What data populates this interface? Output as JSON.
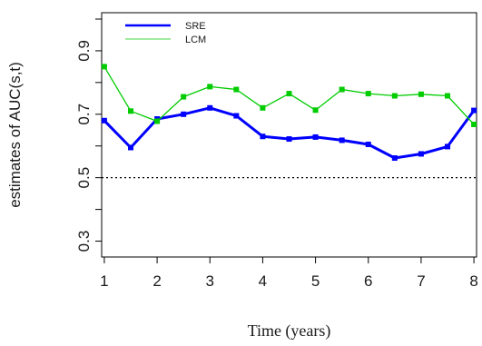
{
  "chart_data": {
    "type": "line",
    "xlabel": "Time (years)",
    "ylabel": "estimates of AUC(s,t)",
    "xlim": [
      0.95,
      8.05
    ],
    "ylim": [
      0.25,
      1.02
    ],
    "x_ticks": [
      "1",
      "2",
      "3",
      "4",
      "5",
      "6",
      "7",
      "8"
    ],
    "y_ticks": [
      "0.3",
      "0.5",
      "0.7",
      "0.9"
    ],
    "y_minor_ticks": [
      0.4,
      0.6,
      0.8,
      1.0
    ],
    "reference_line": 0.5,
    "legend_position": "top-left",
    "x": [
      1,
      1.5,
      2,
      2.5,
      3,
      3.5,
      4,
      4.5,
      5,
      5.5,
      6,
      6.5,
      7,
      7.5,
      8
    ],
    "series": [
      {
        "name": "SRE",
        "color": "#0000ff",
        "values": [
          0.68,
          0.595,
          0.685,
          0.7,
          0.72,
          0.695,
          0.63,
          0.622,
          0.628,
          0.618,
          0.605,
          0.562,
          0.575,
          0.598,
          0.712
        ]
      },
      {
        "name": "LCM",
        "color": "#00cc00",
        "values": [
          0.85,
          0.71,
          0.678,
          0.755,
          0.787,
          0.778,
          0.72,
          0.765,
          0.713,
          0.778,
          0.765,
          0.758,
          0.763,
          0.758,
          0.668
        ]
      }
    ]
  }
}
